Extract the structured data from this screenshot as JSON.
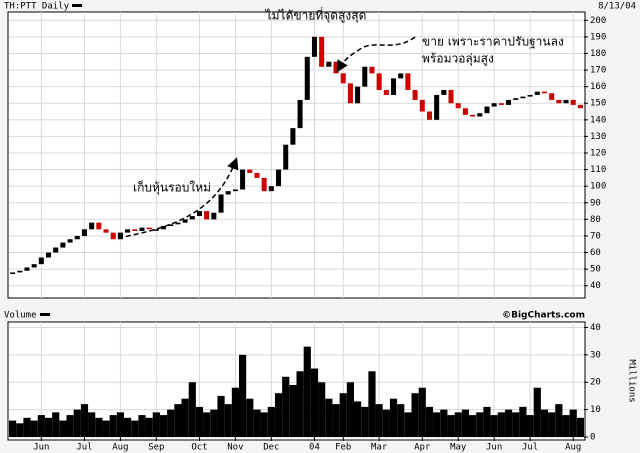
{
  "chart_data": [
    {
      "type": "candlestick",
      "title": "TH:PTT Daily",
      "date": "8/13/04",
      "annotations": [
        "ไม่ได้ขายที่จุดสูงสุด",
        "ขาย เพราะราคาปรับฐานลง",
        "พร้อมวอลุ่มสูง",
        "เก็บหุ้นรอบใหม่"
      ],
      "values": [
        48,
        49,
        51,
        53,
        57,
        60,
        63,
        66,
        68,
        70,
        74,
        78,
        74,
        72,
        68,
        72,
        74,
        73,
        75,
        74,
        74,
        76,
        77,
        78,
        80,
        82,
        85,
        80,
        84,
        95,
        97,
        98,
        110,
        108,
        105,
        97,
        100,
        110,
        125,
        135,
        152,
        178,
        190,
        172,
        175,
        168,
        162,
        150,
        160,
        172,
        168,
        158,
        155,
        165,
        168,
        158,
        152,
        145,
        140,
        155,
        158,
        150,
        147,
        143,
        142,
        144,
        148,
        150,
        149,
        152,
        153,
        154,
        155,
        157,
        156,
        152,
        150,
        152,
        149,
        147
      ],
      "up_color": "#000000",
      "down_color": "#cc0000",
      "xlim": [
        -0.5,
        79.5
      ],
      "ylim": [
        35,
        205
      ],
      "yticks": [
        40,
        50,
        60,
        70,
        80,
        90,
        100,
        110,
        120,
        130,
        140,
        150,
        160,
        170,
        180,
        190,
        200
      ],
      "grid": true
    },
    {
      "type": "bar",
      "title": "Volume",
      "credit": "©BigCharts.com",
      "ylabel": "Millions",
      "values": [
        6,
        5,
        7,
        6,
        8,
        7,
        9,
        6,
        8,
        10,
        12,
        9,
        7,
        6,
        8,
        9,
        7,
        6,
        8,
        7,
        9,
        8,
        10,
        12,
        14,
        20,
        11,
        9,
        10,
        15,
        12,
        18,
        30,
        14,
        10,
        9,
        11,
        16,
        22,
        19,
        24,
        33,
        25,
        20,
        14,
        12,
        16,
        20,
        13,
        11,
        24,
        12,
        10,
        14,
        12,
        9,
        16,
        18,
        11,
        9,
        10,
        8,
        9,
        10,
        8,
        9,
        11,
        8,
        9,
        10,
        9,
        11,
        8,
        18,
        10,
        9,
        12,
        8,
        10,
        7
      ],
      "color": "#000000",
      "xlim": [
        -0.5,
        79.5
      ],
      "ylim": [
        0,
        42
      ],
      "yticks": [
        0,
        10,
        20,
        30,
        40
      ],
      "xticks": [
        {
          "value": 4,
          "label": "Jun"
        },
        {
          "value": 10,
          "label": "Jul"
        },
        {
          "value": 15,
          "label": "Aug"
        },
        {
          "value": 20,
          "label": "Sep"
        },
        {
          "value": 26,
          "label": "Oct"
        },
        {
          "value": 31,
          "label": "Nov"
        },
        {
          "value": 36,
          "label": "Dec"
        },
        {
          "value": 42,
          "label": "04"
        },
        {
          "value": 46,
          "label": "Feb"
        },
        {
          "value": 51,
          "label": "Mar"
        },
        {
          "value": 57,
          "label": "Apr"
        },
        {
          "value": 62,
          "label": "May"
        },
        {
          "value": 67,
          "label": "Jun"
        },
        {
          "value": 72,
          "label": "Jul"
        },
        {
          "value": 78,
          "label": "Aug"
        }
      ],
      "grid": true
    }
  ]
}
